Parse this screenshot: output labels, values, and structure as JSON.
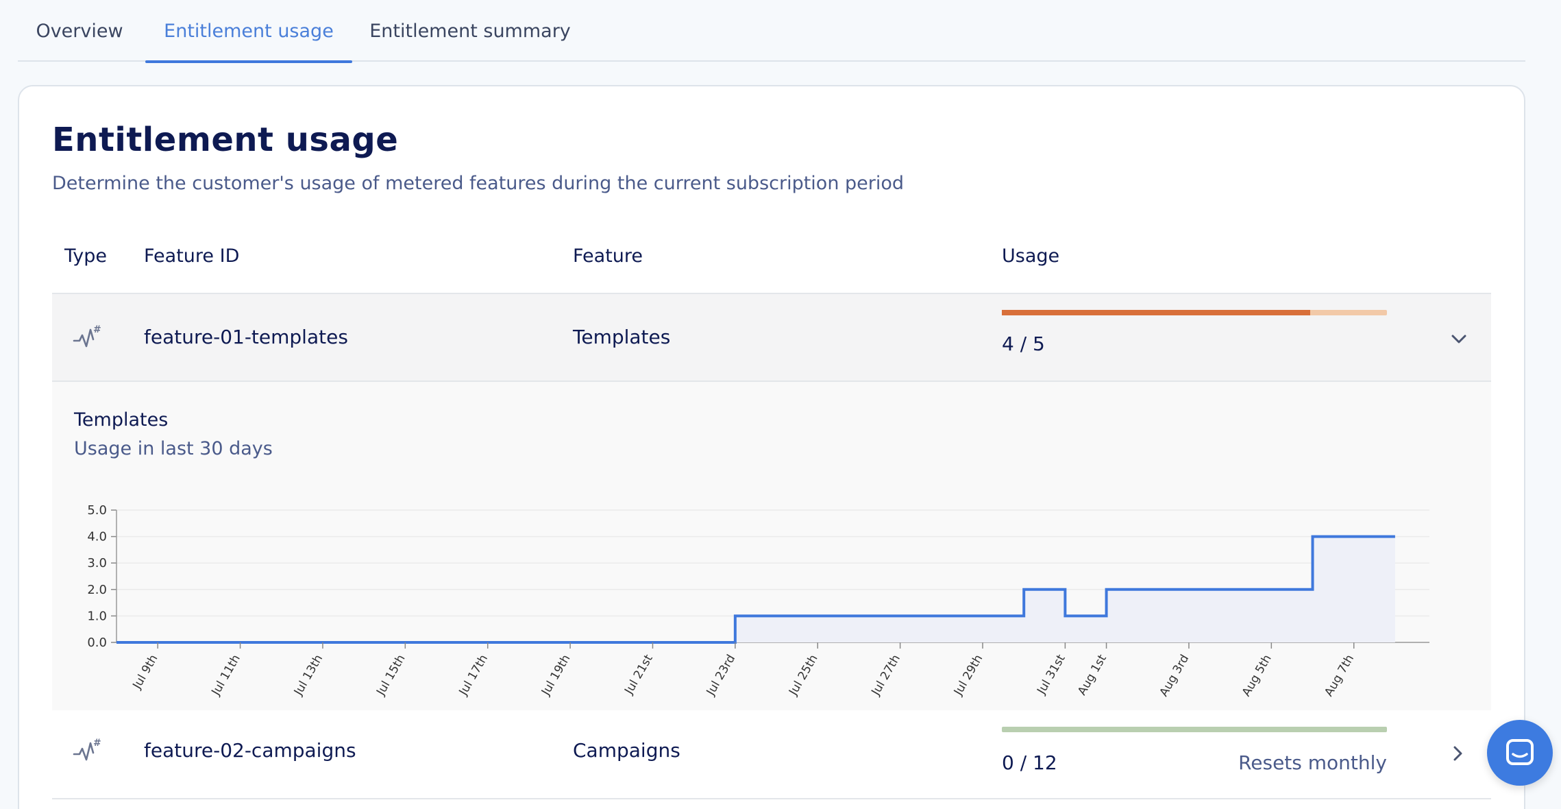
{
  "tabs": [
    {
      "label": "Overview",
      "active": false
    },
    {
      "label": "Entitlement usage",
      "active": true
    },
    {
      "label": "Entitlement summary",
      "active": false
    }
  ],
  "card": {
    "title": "Entitlement usage",
    "subtitle": "Determine the customer's usage of metered features during the current subscription period"
  },
  "table": {
    "headers": {
      "type": "Type",
      "feature_id": "Feature ID",
      "feature": "Feature",
      "usage": "Usage"
    },
    "rows": [
      {
        "icon": "metered-usage-icon",
        "feature_id": "feature-01-templates",
        "feature": "Templates",
        "usage_text": "4 / 5",
        "usage_fraction": 0.8,
        "reset_text": "",
        "bar_color": "#d86f3a",
        "track_color": "#f2c9a8",
        "expanded": true
      },
      {
        "icon": "metered-usage-icon",
        "feature_id": "feature-02-campaigns",
        "feature": "Campaigns",
        "usage_text": "0 / 12",
        "usage_fraction": 0,
        "reset_text": "Resets monthly",
        "bar_color": "#9cc28e",
        "track_color": "#b9cfb0",
        "expanded": false
      }
    ]
  },
  "panel": {
    "title": "Templates",
    "subtitle": "Usage in last 30 days"
  },
  "chart_data": {
    "type": "line",
    "title": "",
    "xlabel": "",
    "ylabel": "",
    "ylim": [
      0,
      5
    ],
    "yticks": [
      "0.0",
      "1.0",
      "2.0",
      "3.0",
      "4.0",
      "5.0"
    ],
    "xlim_days": [
      "2024-07-08",
      "2024-08-08"
    ],
    "xtick_labels": [
      "Jul 9th",
      "Jul 11th",
      "Jul 13th",
      "Jul 15th",
      "Jul 17th",
      "Jul 19th",
      "Jul 21st",
      "Jul 23rd",
      "Jul 25th",
      "Jul 27th",
      "Jul 29th",
      "Jul 31st",
      "Aug 1st",
      "Aug 3rd",
      "Aug 5th",
      "Aug 7th"
    ],
    "xtick_dates": [
      "Jul 9",
      "Jul 11",
      "Jul 13",
      "Jul 15",
      "Jul 17",
      "Jul 19",
      "Jul 21",
      "Jul 23",
      "Jul 25",
      "Jul 27",
      "Jul 29",
      "Jul 31",
      "Aug 1",
      "Aug 3",
      "Aug 5",
      "Aug 7"
    ],
    "step": true,
    "series": [
      {
        "points": [
          {
            "x": "Jul 8",
            "y": 0
          },
          {
            "x": "Jul 23",
            "y": 1
          },
          {
            "x": "Jul 30",
            "y": 2
          },
          {
            "x": "Jul 31",
            "y": 1
          },
          {
            "x": "Aug 1",
            "y": 2
          },
          {
            "x": "Aug 6",
            "y": 4
          },
          {
            "x": "Aug 8",
            "y": 4
          }
        ]
      }
    ],
    "line_color": "#3f78dc",
    "fill_color": "#eef0f8",
    "grid": true
  }
}
